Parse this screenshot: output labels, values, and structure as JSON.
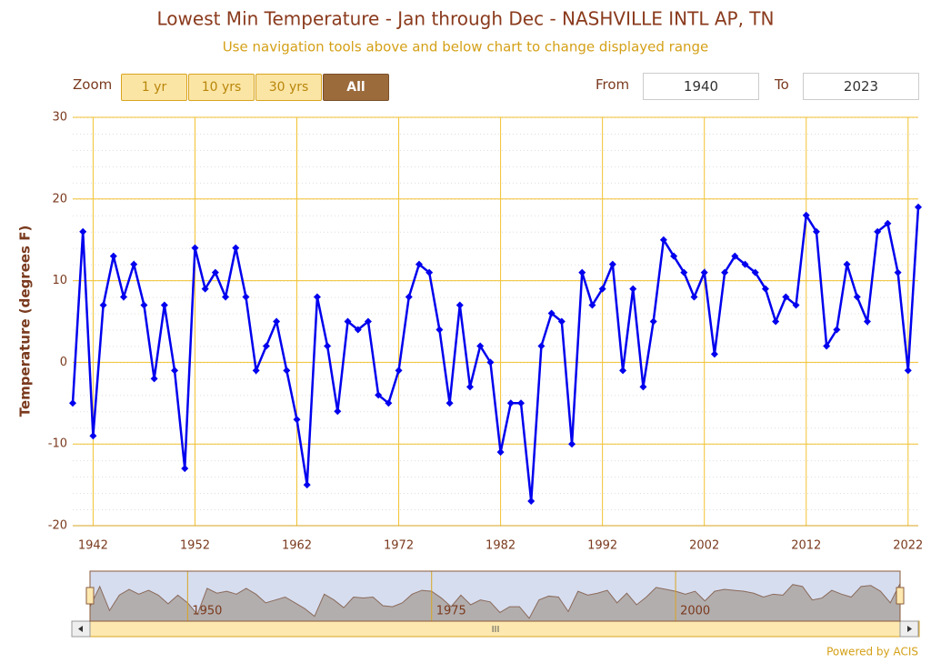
{
  "chart_data": {
    "type": "line",
    "title": "Lowest Min Temperature - Jan through Dec - NASHVILLE INTL AP, TN",
    "subtitle": "Use navigation tools above and below chart to change displayed range",
    "y_label": "Temperature (degrees F)",
    "x": [
      1940,
      1941,
      1942,
      1943,
      1944,
      1945,
      1946,
      1947,
      1948,
      1949,
      1950,
      1951,
      1952,
      1953,
      1954,
      1955,
      1956,
      1957,
      1958,
      1959,
      1960,
      1961,
      1962,
      1963,
      1964,
      1965,
      1966,
      1967,
      1968,
      1969,
      1970,
      1971,
      1972,
      1973,
      1974,
      1975,
      1976,
      1977,
      1978,
      1979,
      1980,
      1981,
      1982,
      1983,
      1984,
      1985,
      1986,
      1987,
      1988,
      1989,
      1990,
      1991,
      1992,
      1993,
      1994,
      1995,
      1996,
      1997,
      1998,
      1999,
      2000,
      2001,
      2002,
      2003,
      2004,
      2005,
      2006,
      2007,
      2008,
      2009,
      2010,
      2011,
      2012,
      2013,
      2014,
      2015,
      2016,
      2017,
      2018,
      2019,
      2020,
      2021,
      2022,
      2023
    ],
    "series": [
      {
        "color": "#0000ee",
        "values": [
          -5,
          16,
          -9,
          7,
          13,
          8,
          12,
          7,
          -2,
          7,
          -1,
          -13,
          14,
          9,
          11,
          8,
          14,
          8,
          -1,
          2,
          5,
          -1,
          -7,
          -15,
          8,
          2,
          -6,
          5,
          4,
          5,
          -4,
          -5,
          -1,
          8,
          12,
          11,
          4,
          -5,
          7,
          -3,
          2,
          0,
          -11,
          -5,
          -5,
          -17,
          2,
          6,
          5,
          -10,
          11,
          7,
          9,
          12,
          -1,
          9,
          -3,
          5,
          15,
          13,
          11,
          8,
          11,
          1,
          11,
          13,
          12,
          11,
          9,
          5,
          8,
          7,
          18,
          16,
          2,
          4,
          12,
          8,
          5,
          16,
          17,
          11,
          -1,
          19
        ]
      }
    ],
    "xlim": [
      1940,
      2023
    ],
    "xticks": [
      1942,
      1952,
      1962,
      1972,
      1982,
      1992,
      2002,
      2012,
      2022
    ],
    "ylim": [
      -20,
      30
    ],
    "yticks": [
      -20,
      -10,
      0,
      10,
      20,
      30
    ],
    "grid": true,
    "navigator_ticks": [
      1950,
      1975,
      2000
    ]
  },
  "controls": {
    "zoom_label": "Zoom",
    "buttons": [
      "1 yr",
      "10 yrs",
      "30 yrs",
      "All"
    ],
    "from_label": "From",
    "from_value": "1940",
    "to_label": "To",
    "to_value": "2023",
    "scrollbar_grip": "III",
    "credit": "Powered by ACIS"
  }
}
